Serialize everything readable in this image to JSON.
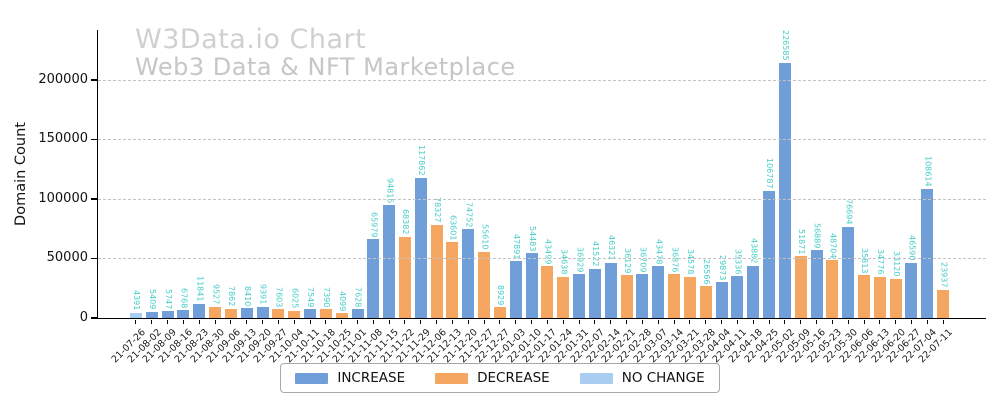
{
  "watermark": {
    "title": "W3Data.io Chart",
    "subtitle": "Web3 Data & NFT Marketplace"
  },
  "chart_data": {
    "type": "bar",
    "title": "W3Data.io Chart",
    "subtitle": "Web3 Data & NFT Marketplace",
    "xlabel": "",
    "ylabel": "Domain Count",
    "ylim": [
      0,
      242000
    ],
    "yticks": [
      0,
      50000,
      100000,
      150000,
      200000
    ],
    "grid": "horizontal-dashed",
    "legend_position": "bottom-center",
    "bar_value_labels": "vertical-above-bar",
    "colors": {
      "increase": "#6f9ed9",
      "decrease": "#f5a761",
      "no_change": "#a9cdf1",
      "value_label": "#48cdc8",
      "gridline": "#c3c3c3",
      "watermark": "#cccccc"
    },
    "legend": [
      {
        "label": "INCREASE",
        "key": "increase"
      },
      {
        "label": "DECREASE",
        "key": "decrease"
      },
      {
        "label": "NO CHANGE",
        "key": "no_change"
      }
    ],
    "points": [
      {
        "date": "21-07-26",
        "value": 4391,
        "change": "no_change"
      },
      {
        "date": "21-08-02",
        "value": 5409,
        "change": "increase"
      },
      {
        "date": "21-08-09",
        "value": 5747,
        "change": "increase"
      },
      {
        "date": "21-08-16",
        "value": 6768,
        "change": "increase"
      },
      {
        "date": "21-08-23",
        "value": 11841,
        "change": "increase"
      },
      {
        "date": "21-08-30",
        "value": 9527,
        "change": "decrease"
      },
      {
        "date": "21-09-06",
        "value": 7862,
        "change": "decrease"
      },
      {
        "date": "21-09-13",
        "value": 8410,
        "change": "increase"
      },
      {
        "date": "21-09-20",
        "value": 9391,
        "change": "increase"
      },
      {
        "date": "21-09-27",
        "value": 7603,
        "change": "decrease"
      },
      {
        "date": "21-10-04",
        "value": 6025,
        "change": "decrease"
      },
      {
        "date": "21-10-11",
        "value": 7549,
        "change": "increase"
      },
      {
        "date": "21-10-18",
        "value": 7390,
        "change": "decrease"
      },
      {
        "date": "21-10-25",
        "value": 4099,
        "change": "decrease"
      },
      {
        "date": "21-11-01",
        "value": 7628,
        "change": "increase"
      },
      {
        "date": "21-11-08",
        "value": 65979,
        "change": "increase"
      },
      {
        "date": "21-11-15",
        "value": 94815,
        "change": "increase"
      },
      {
        "date": "21-11-22",
        "value": 68382,
        "change": "decrease"
      },
      {
        "date": "21-11-29",
        "value": 117862,
        "change": "increase"
      },
      {
        "date": "21-12-06",
        "value": 78327,
        "change": "decrease"
      },
      {
        "date": "21-12-13",
        "value": 63601,
        "change": "decrease"
      },
      {
        "date": "21-12-20",
        "value": 74752,
        "change": "increase"
      },
      {
        "date": "21-12-27",
        "value": 55610,
        "change": "decrease"
      },
      {
        "date": "22-12-27",
        "value": 8929,
        "change": "decrease"
      },
      {
        "date": "22-01-03",
        "value": 47891,
        "change": "increase"
      },
      {
        "date": "22-01-10",
        "value": 54483,
        "change": "increase"
      },
      {
        "date": "22-01-17",
        "value": 43499,
        "change": "decrease"
      },
      {
        "date": "22-01-24",
        "value": 34638,
        "change": "decrease"
      },
      {
        "date": "22-01-31",
        "value": 36929,
        "change": "increase"
      },
      {
        "date": "22-02-07",
        "value": 41522,
        "change": "increase"
      },
      {
        "date": "22-02-14",
        "value": 46321,
        "change": "increase"
      },
      {
        "date": "22-02-21",
        "value": 36129,
        "change": "decrease"
      },
      {
        "date": "22-02-28",
        "value": 36709,
        "change": "increase"
      },
      {
        "date": "22-03-07",
        "value": 43478,
        "change": "increase"
      },
      {
        "date": "22-03-14",
        "value": 36876,
        "change": "decrease"
      },
      {
        "date": "22-03-21",
        "value": 34578,
        "change": "decrease"
      },
      {
        "date": "22-03-28",
        "value": 26566,
        "change": "decrease"
      },
      {
        "date": "22-04-04",
        "value": 29873,
        "change": "increase"
      },
      {
        "date": "22-04-11",
        "value": 35336,
        "change": "increase"
      },
      {
        "date": "22-04-18",
        "value": 43882,
        "change": "increase"
      },
      {
        "date": "22-04-25",
        "value": 106787,
        "change": "increase"
      },
      {
        "date": "22-05-02",
        "value": 226585,
        "change": "increase"
      },
      {
        "date": "22-05-09",
        "value": 51871,
        "change": "decrease"
      },
      {
        "date": "22-05-16",
        "value": 56889,
        "change": "increase"
      },
      {
        "date": "22-05-23",
        "value": 48704,
        "change": "decrease"
      },
      {
        "date": "22-05-30",
        "value": 76694,
        "change": "increase"
      },
      {
        "date": "22-06-06",
        "value": 35813,
        "change": "decrease"
      },
      {
        "date": "22-06-13",
        "value": 34776,
        "change": "decrease"
      },
      {
        "date": "22-06-20",
        "value": 33120,
        "change": "decrease"
      },
      {
        "date": "22-06-27",
        "value": 46590,
        "change": "increase"
      },
      {
        "date": "22-07-04",
        "value": 108614,
        "change": "increase"
      },
      {
        "date": "22-07-11",
        "value": 23937,
        "change": "decrease"
      }
    ]
  }
}
